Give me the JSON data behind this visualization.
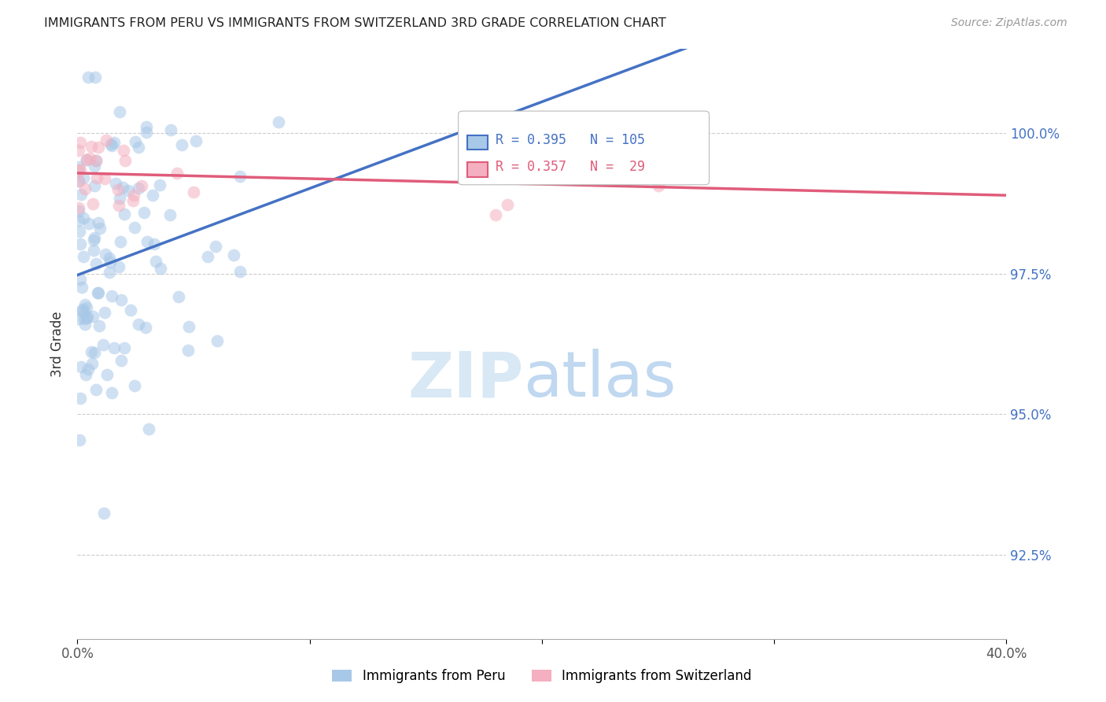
{
  "title": "IMMIGRANTS FROM PERU VS IMMIGRANTS FROM SWITZERLAND 3RD GRADE CORRELATION CHART",
  "source": "Source: ZipAtlas.com",
  "ylabel": "3rd Grade",
  "xlim": [
    0.0,
    40.0
  ],
  "ylim": [
    91.0,
    101.5
  ],
  "yticks": [
    92.5,
    95.0,
    97.5,
    100.0
  ],
  "ytick_labels": [
    "92.5%",
    "95.0%",
    "97.5%",
    "100.0%"
  ],
  "peru_R": 0.395,
  "peru_N": 105,
  "swiss_R": 0.357,
  "swiss_N": 29,
  "peru_color": "#a8c8e8",
  "swiss_color": "#f4b0c0",
  "peru_line_color": "#4472c4",
  "swiss_line_color": "#e05c7a",
  "legend_label_peru": "Immigrants from Peru",
  "legend_label_swiss": "Immigrants from Switzerland",
  "background_color": "#ffffff",
  "title_fontsize": 11.5,
  "source_fontsize": 10,
  "axis_label_fontsize": 12,
  "tick_fontsize": 12,
  "legend_fontsize": 12
}
